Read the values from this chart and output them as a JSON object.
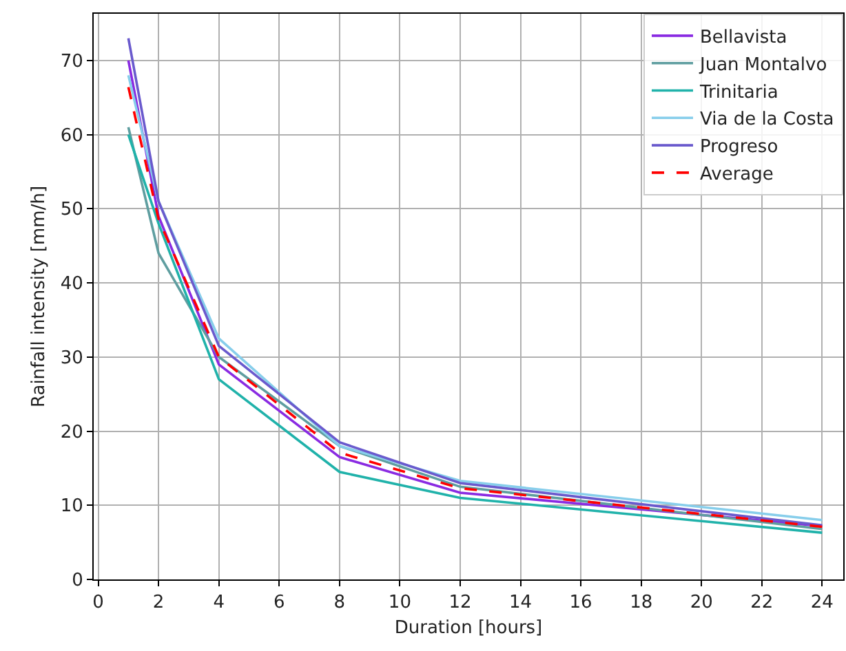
{
  "chart_data": {
    "type": "line",
    "xlabel": "Duration [hours]",
    "ylabel": "Rainfall intensity [mm/h]",
    "x": [
      1,
      2,
      4,
      8,
      12,
      24
    ],
    "series": [
      {
        "name": "Bellavista",
        "color": "#8a2be2",
        "values": [
          70,
          49,
          29,
          16.5,
          11.7,
          7.2
        ]
      },
      {
        "name": "Juan Montalvo",
        "color": "#5f9ea0",
        "values": [
          61,
          44,
          30,
          18,
          12.5,
          6.8
        ]
      },
      {
        "name": "Trinitaria",
        "color": "#20b2aa",
        "values": [
          60,
          48,
          27,
          14.5,
          11,
          6.3
        ]
      },
      {
        "name": "Via de la Costa",
        "color": "#87ceeb",
        "values": [
          68,
          51,
          32.5,
          18,
          13.3,
          8
        ]
      },
      {
        "name": "Progreso",
        "color": "#6a5acd",
        "values": [
          73,
          51,
          31.5,
          18.5,
          13,
          7.3
        ]
      },
      {
        "name": "Average",
        "color": "#ff0000",
        "line_style": "dashed",
        "values": [
          66.4,
          48.6,
          30,
          17.1,
          12.3,
          7.1
        ]
      }
    ],
    "xlim": [
      -0.15,
      24.7
    ],
    "xticks": [
      0,
      2,
      4,
      6,
      8,
      10,
      12,
      14,
      16,
      18,
      20,
      22,
      24
    ],
    "ylim": [
      0,
      76.3
    ],
    "yticks": [
      0,
      10,
      20,
      30,
      40,
      50,
      60,
      70
    ],
    "grid": true,
    "legend": "top right",
    "marker": "none",
    "line_style": "solid"
  }
}
